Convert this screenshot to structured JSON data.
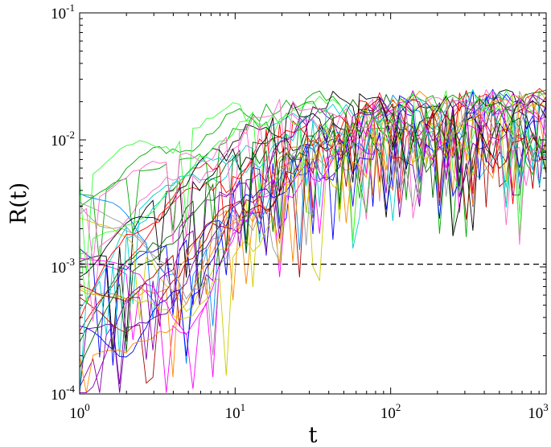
{
  "chart_data": {
    "type": "line",
    "title": "",
    "xlabel": "t",
    "ylabel": "R(t)",
    "xscale": "log",
    "yscale": "log",
    "xlim": [
      1,
      1000
    ],
    "ylim": [
      0.0001,
      0.1
    ],
    "x_ticks": [
      {
        "base": "10",
        "exp": "0"
      },
      {
        "base": "10",
        "exp": "1"
      },
      {
        "base": "10",
        "exp": "2"
      },
      {
        "base": "10",
        "exp": "3"
      }
    ],
    "y_ticks": [
      {
        "base": "10",
        "exp": "-4"
      },
      {
        "base": "10",
        "exp": "-3"
      },
      {
        "base": "10",
        "exp": "-2"
      },
      {
        "base": "10",
        "exp": "-1"
      }
    ],
    "grid": false,
    "legend": "none",
    "reference_line": {
      "y": 0.00105,
      "style": "dashed",
      "color": "#000000"
    },
    "series_colors": [
      "#ff0000",
      "#00aa00",
      "#0000ff",
      "#ff00ff",
      "#00cccc",
      "#000000",
      "#ff8800",
      "#cccc00",
      "#8800aa",
      "#33ff33",
      "#aa0000",
      "#999999",
      "#006600",
      "#ff66cc",
      "#660099",
      "#0088ff"
    ],
    "series_count": 30,
    "plateau": 0.015,
    "series": [
      {
        "x": [
          1,
          2,
          5,
          10,
          30,
          100,
          1000
        ],
        "y": [
          0.0002,
          0.001,
          0.003,
          0.006,
          0.012,
          0.015,
          0.015
        ]
      },
      {
        "x": [
          1,
          2,
          5,
          10,
          30,
          100,
          1000
        ],
        "y": [
          0.0025,
          0.004,
          0.008,
          0.012,
          0.016,
          0.015,
          0.015
        ]
      },
      {
        "x": [
          1,
          2,
          5,
          10,
          30,
          100,
          1000
        ],
        "y": [
          0.0006,
          0.0004,
          0.001,
          0.003,
          0.008,
          0.015,
          0.015
        ]
      },
      {
        "x": [
          1,
          2,
          5,
          10,
          30,
          100,
          1000
        ],
        "y": [
          0.002,
          0.0012,
          0.0005,
          0.002,
          0.007,
          0.014,
          0.015
        ]
      }
    ]
  }
}
